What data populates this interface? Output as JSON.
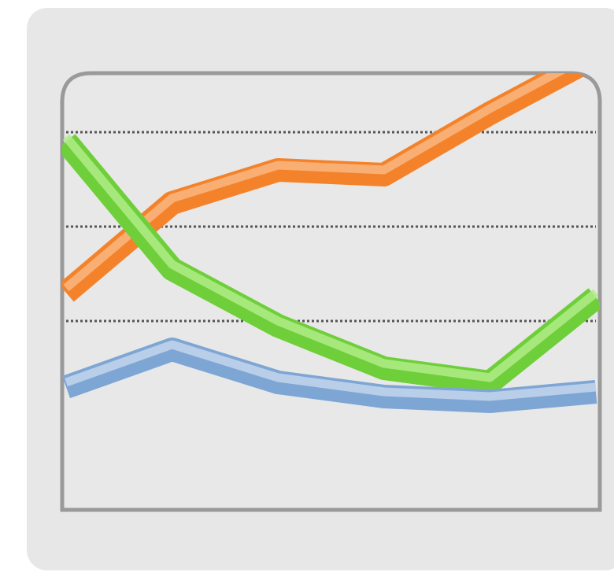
{
  "chart_data": {
    "type": "line",
    "title": "",
    "xlabel": "",
    "ylabel": "",
    "x": [
      0,
      1,
      2,
      3,
      4,
      5
    ],
    "xlim": [
      0,
      5
    ],
    "ylim": [
      0,
      10
    ],
    "grid": true,
    "grid_lines": [
      4,
      6,
      8,
      10
    ],
    "series": [
      {
        "color": "#f4822a",
        "highlight": "#f9b680",
        "values": [
          4.6,
          6.5,
          7.2,
          7.1,
          8.4,
          9.6
        ]
      },
      {
        "color": "#6fcf3a",
        "highlight": "#b2ec8a",
        "values": [
          7.8,
          5.1,
          3.9,
          3.0,
          2.7,
          4.5
        ]
      },
      {
        "color": "#7ea6d4",
        "highlight": "#c3d5ec",
        "values": [
          2.6,
          3.4,
          2.7,
          2.4,
          2.3,
          2.5
        ]
      }
    ]
  },
  "colors": {
    "frame": "#9a9a9a",
    "gridline": "#555555",
    "plot_background": "#e8e8e8",
    "card_background": "#e7e7e7"
  }
}
